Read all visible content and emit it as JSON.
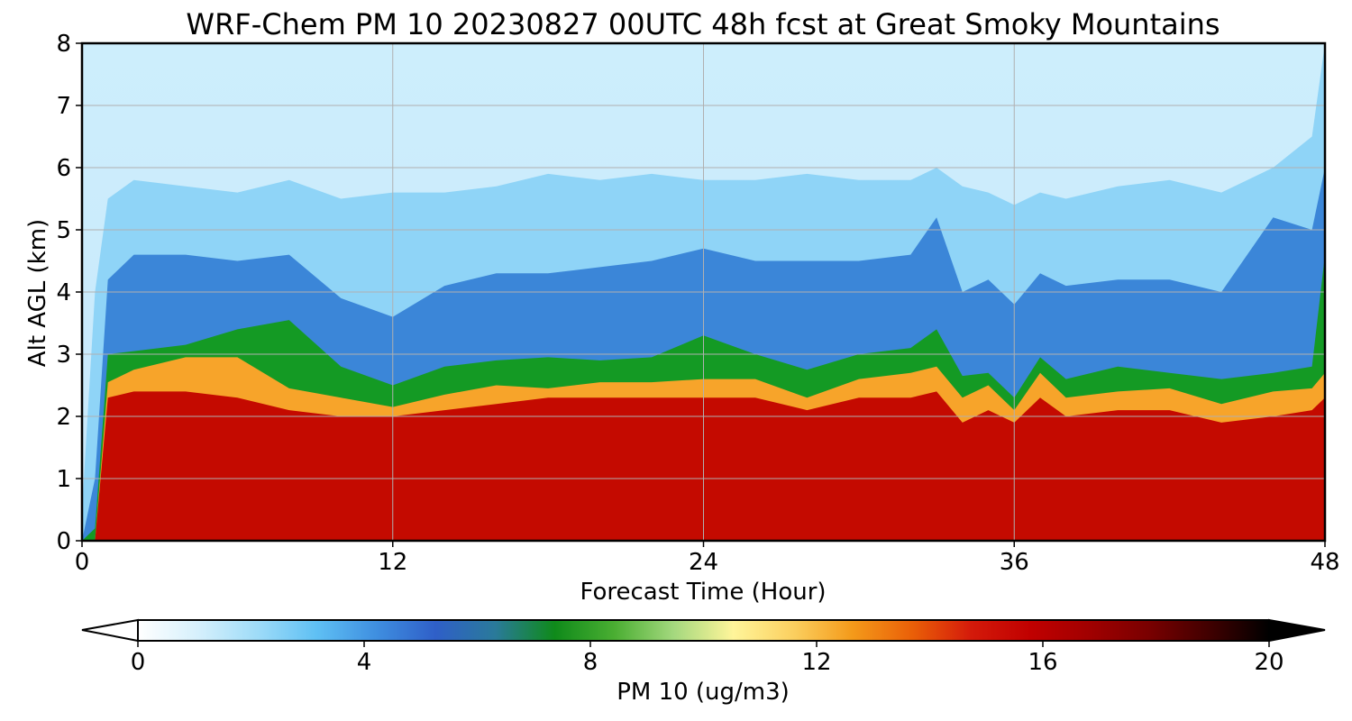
{
  "chart_data": {
    "type": "heatmap",
    "title": "WRF-Chem PM 10  20230827 00UTC 48h fcst at Great Smoky Mountains",
    "xlabel": "Forecast Time (Hour)",
    "ylabel": "Alt AGL (km)",
    "xlim": [
      0,
      48
    ],
    "ylim": [
      0,
      8
    ],
    "x_ticks": [
      "0",
      "12",
      "24",
      "36",
      "48"
    ],
    "y_ticks": [
      "0",
      "1",
      "2",
      "3",
      "4",
      "5",
      "6",
      "7",
      "8"
    ],
    "grid": true,
    "colorbar": {
      "label": "PM 10  (ug/m3)",
      "range": [
        0,
        20
      ],
      "ticks": [
        "0",
        "4",
        "8",
        "12",
        "16",
        "20"
      ],
      "extend": "both",
      "colors": [
        "#ffffff",
        "#d6f0fc",
        "#9fdcf8",
        "#5fc0f4",
        "#3f8fe0",
        "#2f5fc8",
        "#2a7a9a",
        "#0f8a1a",
        "#4aae32",
        "#a4d87e",
        "#fff59a",
        "#fbd060",
        "#f49a1a",
        "#ea6008",
        "#d41a0a",
        "#c00000",
        "#a00000",
        "#780000",
        "#400000",
        "#000000"
      ]
    },
    "x": [
      0,
      0.5,
      1,
      2,
      4,
      6,
      8,
      10,
      12,
      14,
      16,
      18,
      20,
      22,
      24,
      26,
      28,
      30,
      32,
      33,
      34,
      35,
      36,
      37,
      38,
      40,
      42,
      44,
      46,
      47.5,
      48
    ],
    "layer_top_red_km": [
      0,
      0,
      2.3,
      2.4,
      2.4,
      2.3,
      2.1,
      2.0,
      2.0,
      2.1,
      2.2,
      2.3,
      2.3,
      2.3,
      2.3,
      2.3,
      2.1,
      2.3,
      2.3,
      2.4,
      1.9,
      2.1,
      1.9,
      2.3,
      2.0,
      2.1,
      2.1,
      1.9,
      2.0,
      2.1,
      2.3
    ],
    "layer_top_yellow_km": [
      0,
      0,
      2.55,
      2.75,
      2.95,
      2.95,
      2.45,
      2.3,
      2.15,
      2.35,
      2.5,
      2.45,
      2.55,
      2.55,
      2.6,
      2.6,
      2.3,
      2.6,
      2.7,
      2.8,
      2.3,
      2.5,
      2.1,
      2.7,
      2.3,
      2.4,
      2.45,
      2.2,
      2.4,
      2.45,
      2.7
    ],
    "layer_top_green_km": [
      0,
      0.2,
      3.0,
      3.05,
      3.15,
      3.4,
      3.55,
      2.8,
      2.5,
      2.8,
      2.9,
      2.95,
      2.9,
      2.95,
      3.3,
      3.0,
      2.75,
      3.0,
      3.1,
      3.4,
      2.65,
      2.7,
      2.3,
      2.95,
      2.6,
      2.8,
      2.7,
      2.6,
      2.7,
      2.8,
      4.6
    ],
    "layer_top_blue_km": [
      0,
      1.0,
      4.2,
      4.6,
      4.6,
      4.5,
      4.6,
      3.9,
      3.6,
      4.1,
      4.3,
      4.3,
      4.4,
      4.5,
      4.7,
      4.5,
      4.5,
      4.5,
      4.6,
      5.2,
      4.0,
      4.2,
      3.8,
      4.3,
      4.1,
      4.2,
      4.2,
      4.0,
      5.2,
      5.0,
      6.0
    ],
    "layer_top_lightblue_km": [
      0.5,
      4.0,
      5.5,
      5.8,
      5.7,
      5.6,
      5.8,
      5.5,
      5.6,
      5.6,
      5.7,
      5.9,
      5.8,
      5.9,
      5.8,
      5.8,
      5.9,
      5.8,
      5.8,
      6.0,
      5.7,
      5.6,
      5.4,
      5.6,
      5.5,
      5.7,
      5.8,
      5.6,
      6.0,
      6.5,
      8.0
    ]
  }
}
